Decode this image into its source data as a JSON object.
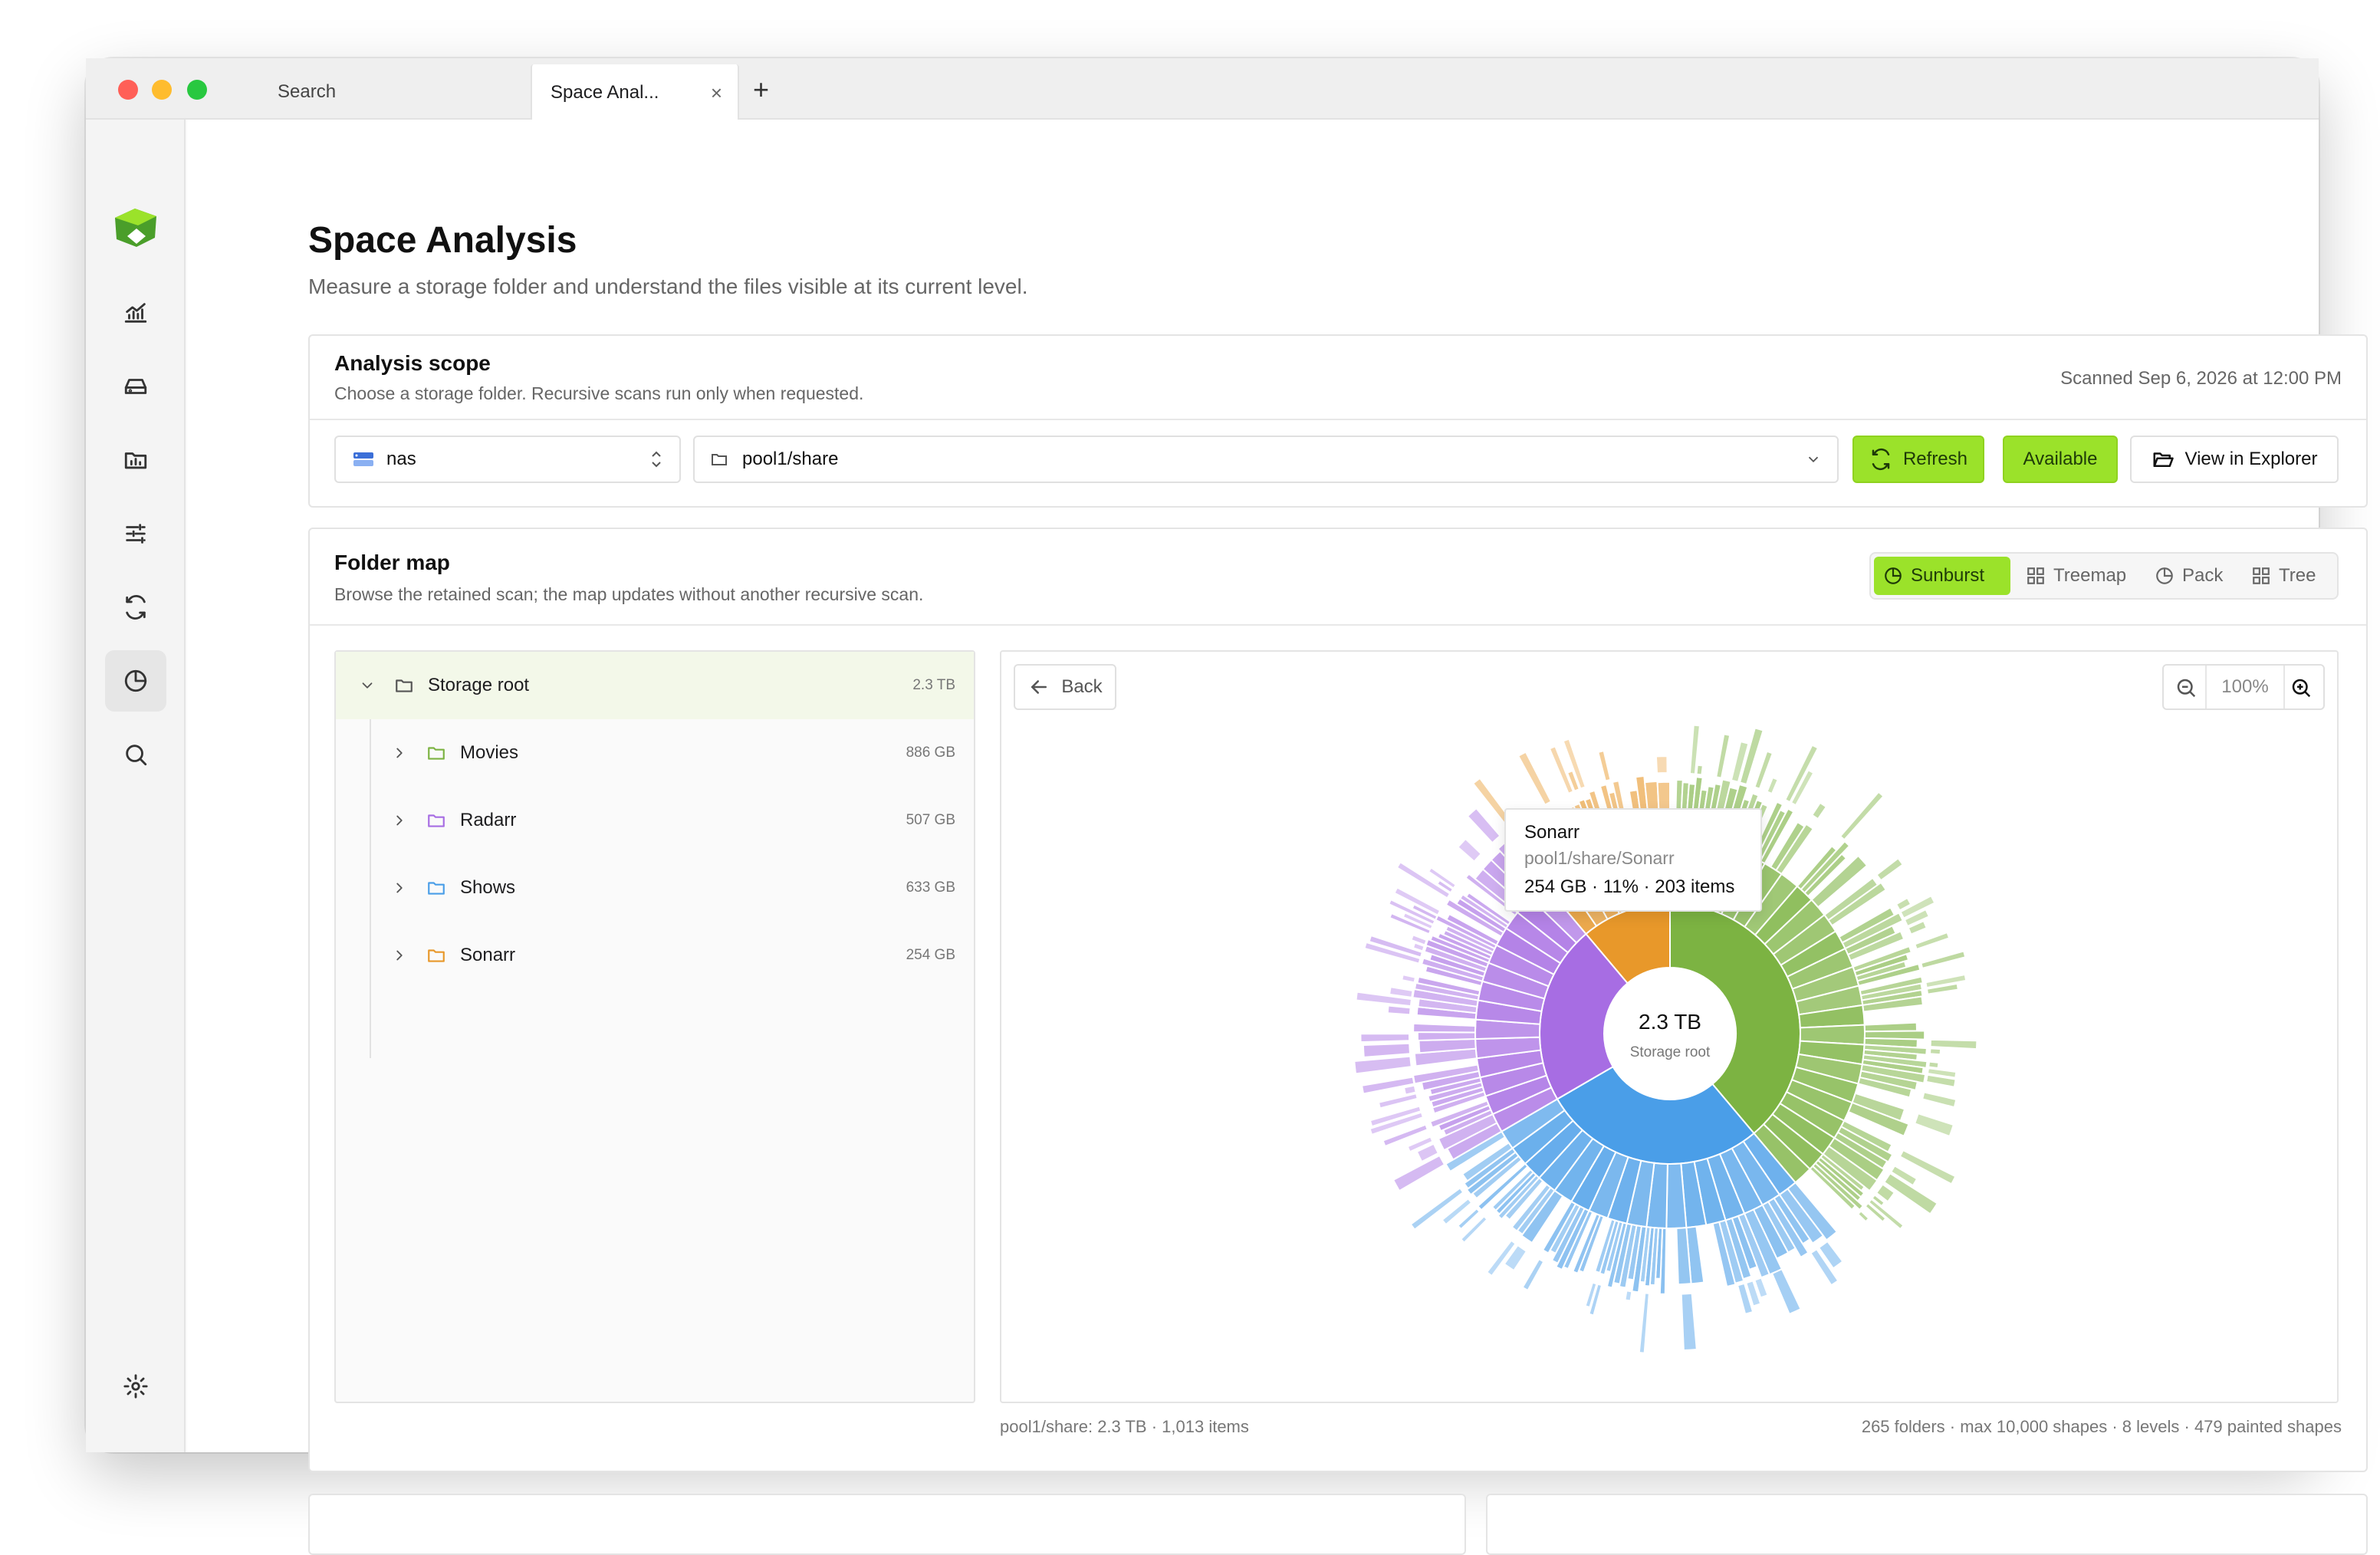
{
  "window": {
    "tabs": [
      {
        "label": "Search",
        "active": false
      },
      {
        "label": "Space Anal...",
        "active": true
      }
    ],
    "new_tab_symbol": "+",
    "close_symbol": "×"
  },
  "sidebar": {
    "items": [
      {
        "icon": "activity-chart-icon"
      },
      {
        "icon": "hard-drive-icon"
      },
      {
        "icon": "folder-chart-icon"
      },
      {
        "icon": "sliders-icon"
      },
      {
        "icon": "sync-icon"
      },
      {
        "icon": "pie-chart-icon",
        "active": true
      },
      {
        "icon": "search-icon"
      },
      {
        "icon": "gear-icon"
      }
    ]
  },
  "page": {
    "title": "Space Analysis",
    "subtitle": "Measure a storage folder and understand the files visible at its current level."
  },
  "scope": {
    "title": "Analysis scope",
    "subtitle": "Choose a storage folder. Recursive scans run only when requested.",
    "scanned": "Scanned Sep 6, 2026 at 12:00 PM",
    "server": "nas",
    "path": "pool1/share",
    "refresh_label": "Refresh",
    "available_label": "Available",
    "explorer_label": "View in Explorer"
  },
  "folder_map": {
    "title": "Folder map",
    "subtitle": "Browse the retained scan; the map updates without another recursive scan.",
    "views": [
      {
        "label": "Sunburst",
        "icon": "pie-icon",
        "active": true
      },
      {
        "label": "Treemap",
        "icon": "grid-icon"
      },
      {
        "label": "Pack",
        "icon": "pie-icon"
      },
      {
        "label": "Tree",
        "icon": "grid-icon"
      }
    ],
    "tree": {
      "root": {
        "label": "Storage root",
        "size": "2.3 TB"
      },
      "children": [
        {
          "label": "Movies",
          "size": "886 GB",
          "color": "#7cb342"
        },
        {
          "label": "Radarr",
          "size": "507 GB",
          "color": "#a76de3"
        },
        {
          "label": "Shows",
          "size": "633 GB",
          "color": "#4a9ee8"
        },
        {
          "label": "Sonarr",
          "size": "254 GB",
          "color": "#e8982a"
        }
      ]
    },
    "back_label": "Back",
    "zoom": "100%",
    "center_value": "2.3 TB",
    "center_label": "Storage root",
    "tooltip": {
      "title": "Sonarr",
      "path": "pool1/share/Sonarr",
      "stats": "254 GB · 11% · 203 items"
    },
    "footer_left": "pool1/share: 2.3 TB · 1,013 items",
    "footer_right": "265 folders · max 10,000 shapes · 8 levels · 479 painted shapes"
  },
  "colors": {
    "accent": "#9be22a",
    "movies": "#7cb342",
    "radarr": "#a76de3",
    "shows": "#4a9ee8",
    "sonarr": "#e8982a"
  },
  "chart_data": {
    "type": "sunburst",
    "center": {
      "value": "2.3 TB",
      "label": "Storage root"
    },
    "segments": [
      {
        "name": "Movies",
        "size_gb": 886,
        "color": "#7cb342"
      },
      {
        "name": "Shows",
        "size_gb": 633,
        "color": "#4a9ee8"
      },
      {
        "name": "Radarr",
        "size_gb": 507,
        "color": "#a76de3"
      },
      {
        "name": "Sonarr",
        "size_gb": 254,
        "color": "#e8982a"
      }
    ]
  }
}
